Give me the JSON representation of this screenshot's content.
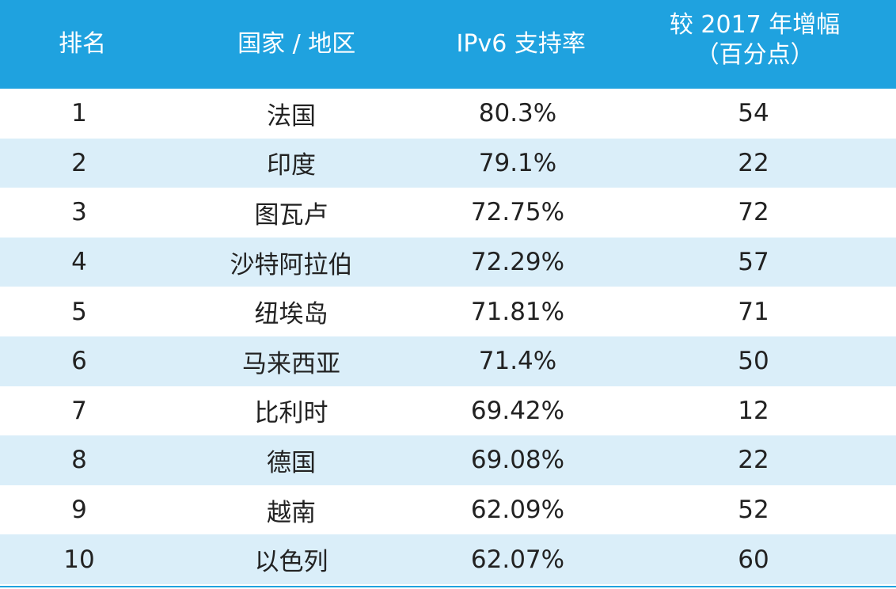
{
  "table": {
    "headers": {
      "rank": "排名",
      "country": "国家 / 地区",
      "rate": "IPv6 支持率",
      "growth_line1": "较 2017 年增幅",
      "growth_line2": "（百分点）"
    },
    "rows": [
      {
        "rank": "1",
        "country": "法国",
        "rate": "80.3%",
        "growth": "54"
      },
      {
        "rank": "2",
        "country": "印度",
        "rate": "79.1%",
        "growth": "22"
      },
      {
        "rank": "3",
        "country": "图瓦卢",
        "rate": "72.75%",
        "growth": "72"
      },
      {
        "rank": "4",
        "country": "沙特阿拉伯",
        "rate": "72.29%",
        "growth": "57"
      },
      {
        "rank": "5",
        "country": "纽埃岛",
        "rate": "71.81%",
        "growth": "71"
      },
      {
        "rank": "6",
        "country": "马来西亚",
        "rate": "71.4%",
        "growth": "50"
      },
      {
        "rank": "7",
        "country": "比利时",
        "rate": "69.42%",
        "growth": "12"
      },
      {
        "rank": "8",
        "country": "德国",
        "rate": "69.08%",
        "growth": "22"
      },
      {
        "rank": "9",
        "country": "越南",
        "rate": "62.09%",
        "growth": "52"
      },
      {
        "rank": "10",
        "country": "以色列",
        "rate": "62.07%",
        "growth": "60"
      }
    ]
  },
  "colors": {
    "header_bg": "#1fa2df",
    "alt_row_bg": "#daeef9"
  }
}
